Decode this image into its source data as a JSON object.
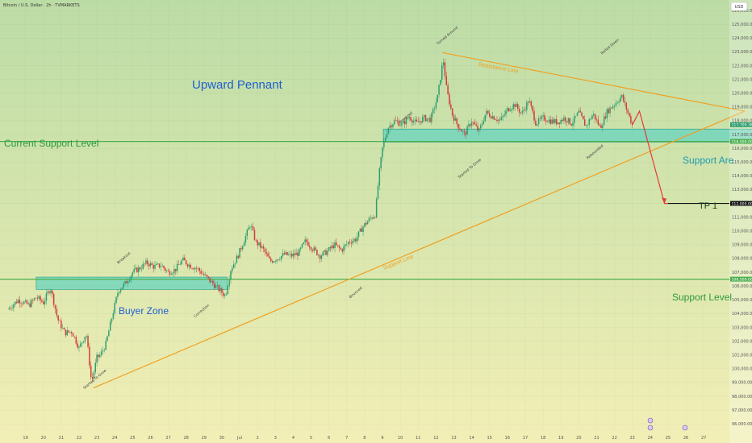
{
  "header": {
    "symbol_line": "Bitcoin / U.S. Dollar · 2h · TVMARKETS",
    "currency_button": "USD"
  },
  "colors": {
    "bg_top": "#bcdca6",
    "bg_bottom": "#f2efb6",
    "support_line": "#4caf50",
    "pennant_line": "#f0a020",
    "zone_fill": "#5fd3c0",
    "up_candle": "#2e9e6f",
    "down_candle": "#d33b3b",
    "arrow": "#e53935",
    "title_blue": "#1f5fd0",
    "label_green": "#2e9a3e",
    "tp_dark": "#1b3a1b"
  },
  "labels": {
    "title": "Upward Pennant",
    "current_support": "Current Support Level",
    "support_area": "Support Are",
    "support_level": "Support Level",
    "buyer_zone": "Buyer Zone",
    "tp1": "TP 1",
    "resistance_line": "Resistance Line",
    "support_line": "Support Line"
  },
  "annotations": [
    {
      "text": "Started To Grow",
      "t": 22.3,
      "price": 98500
    },
    {
      "text": "Breakout",
      "t": 24.2,
      "price": 107600
    },
    {
      "text": "Correction",
      "t": 28.5,
      "price": 103700
    },
    {
      "text": "Bounced",
      "t": 37.2,
      "price": 105100
    },
    {
      "text": "Breakout",
      "t": 40.0,
      "price": 117800
    },
    {
      "text": "Turned Around",
      "t": 42.1,
      "price": 123500
    },
    {
      "text": "Started To Grow",
      "t": 43.3,
      "price": 113800
    },
    {
      "text": "Rebounded",
      "t": 50.5,
      "price": 115200
    },
    {
      "text": "Rolled Down",
      "t": 51.3,
      "price": 122800
    }
  ],
  "price_tags": [
    {
      "text": "117,709.38",
      "price": 117709,
      "color": "#2e9e6f"
    },
    {
      "text": "116,500.00",
      "price": 116500,
      "color": "#4caf50"
    },
    {
      "text": "112,000.00",
      "price": 112000,
      "color": "#111111"
    },
    {
      "text": "106,500.00",
      "price": 106500,
      "color": "#4caf50"
    }
  ],
  "chart_data": {
    "type": "candlestick",
    "title": "Bitcoin / U.S. Dollar · 2h · TVMARKETS",
    "x_ticks": [
      "19",
      "20",
      "21",
      "22",
      "23",
      "24",
      "25",
      "26",
      "27",
      "28",
      "29",
      "30",
      "Jul",
      "2",
      "3",
      "4",
      "5",
      "6",
      "7",
      "8",
      "9",
      "10",
      "11",
      "12",
      "13",
      "14",
      "15",
      "16",
      "17",
      "18",
      "19",
      "20",
      "21",
      "22",
      "23",
      "24",
      "25",
      "26",
      "27"
    ],
    "y_ticks": [
      96000,
      97000,
      98000,
      99000,
      100000,
      101000,
      102000,
      103000,
      104000,
      105000,
      106000,
      107000,
      108000,
      109000,
      110000,
      111000,
      112000,
      113000,
      114000,
      115000,
      116000,
      117000,
      118000,
      119000,
      120000,
      121000,
      122000,
      123000,
      124000,
      125000,
      126000
    ],
    "ylim": [
      95600,
      126300
    ],
    "grid": true,
    "price_path": [
      [
        18.0,
        104300
      ],
      [
        18.6,
        105000
      ],
      [
        19.2,
        104600
      ],
      [
        19.6,
        105200
      ],
      [
        20.0,
        104800
      ],
      [
        20.4,
        105900
      ],
      [
        20.8,
        103600
      ],
      [
        21.2,
        102600
      ],
      [
        21.6,
        102700
      ],
      [
        22.0,
        101500
      ],
      [
        22.4,
        102600
      ],
      [
        22.7,
        99000
      ],
      [
        23.0,
        100800
      ],
      [
        23.2,
        101000
      ],
      [
        23.5,
        101800
      ],
      [
        23.8,
        103500
      ],
      [
        24.2,
        105700
      ],
      [
        24.6,
        106200
      ],
      [
        25.0,
        107000
      ],
      [
        25.4,
        107300
      ],
      [
        25.8,
        107700
      ],
      [
        26.2,
        107400
      ],
      [
        26.6,
        107500
      ],
      [
        27.0,
        107000
      ],
      [
        27.4,
        107200
      ],
      [
        27.8,
        107900
      ],
      [
        28.2,
        107500
      ],
      [
        28.6,
        107300
      ],
      [
        29.0,
        106800
      ],
      [
        29.4,
        106300
      ],
      [
        29.8,
        105800
      ],
      [
        30.2,
        105300
      ],
      [
        30.5,
        107200
      ],
      [
        30.9,
        108200
      ],
      [
        31.3,
        109500
      ],
      [
        31.6,
        110500
      ],
      [
        31.9,
        109200
      ],
      [
        32.3,
        108700
      ],
      [
        32.7,
        107800
      ],
      [
        33.1,
        108000
      ],
      [
        33.5,
        108300
      ],
      [
        33.9,
        108200
      ],
      [
        34.3,
        108400
      ],
      [
        34.7,
        109300
      ],
      [
        35.1,
        108700
      ],
      [
        35.5,
        108200
      ],
      [
        35.9,
        108500
      ],
      [
        36.3,
        109000
      ],
      [
        36.7,
        108600
      ],
      [
        37.1,
        109200
      ],
      [
        37.5,
        109400
      ],
      [
        37.9,
        110300
      ],
      [
        38.3,
        110900
      ],
      [
        38.6,
        111200
      ],
      [
        38.8,
        114000
      ],
      [
        39.0,
        116000
      ],
      [
        39.3,
        117500
      ],
      [
        39.7,
        118000
      ],
      [
        40.1,
        117700
      ],
      [
        40.5,
        118300
      ],
      [
        40.9,
        117800
      ],
      [
        41.3,
        118200
      ],
      [
        41.7,
        118100
      ],
      [
        42.1,
        119800
      ],
      [
        42.4,
        122500
      ],
      [
        42.6,
        120200
      ],
      [
        42.9,
        118500
      ],
      [
        43.2,
        117700
      ],
      [
        43.6,
        117000
      ],
      [
        44.0,
        118000
      ],
      [
        44.4,
        117200
      ],
      [
        44.8,
        118600
      ],
      [
        45.2,
        118300
      ],
      [
        45.6,
        118000
      ],
      [
        46.0,
        118800
      ],
      [
        46.4,
        119200
      ],
      [
        46.8,
        118500
      ],
      [
        47.2,
        119500
      ],
      [
        47.6,
        117800
      ],
      [
        48.0,
        118200
      ],
      [
        48.4,
        118000
      ],
      [
        48.8,
        117900
      ],
      [
        49.2,
        118200
      ],
      [
        49.6,
        117800
      ],
      [
        50.0,
        118600
      ],
      [
        50.4,
        117600
      ],
      [
        50.8,
        118500
      ],
      [
        51.2,
        117500
      ],
      [
        51.6,
        118700
      ],
      [
        52.0,
        119200
      ],
      [
        52.4,
        119800
      ],
      [
        52.8,
        118400
      ],
      [
        53.0,
        117700
      ]
    ],
    "projection": [
      [
        53.0,
        117700
      ],
      [
        53.4,
        118700
      ],
      [
        54.8,
        112000
      ],
      [
        55.0,
        112000
      ]
    ],
    "levels": [
      {
        "name": "Current Support Level",
        "price": 116500
      },
      {
        "name": "Support Level",
        "price": 106500
      },
      {
        "name": "TP 1",
        "price": 112000
      }
    ],
    "zones": [
      {
        "name": "Support Area",
        "t0": 39.05,
        "t1": 61.2,
        "low": 116450,
        "high": 117400
      },
      {
        "name": "Buyer Zone",
        "t0": 19.6,
        "t1": 30.3,
        "low": 105750,
        "high": 106650
      }
    ],
    "trendlines": [
      {
        "name": "Resistance Line",
        "points": [
          [
            42.35,
            122950
          ],
          [
            59.3,
            118700
          ]
        ]
      },
      {
        "name": "Support Line",
        "points": [
          [
            22.8,
            98600
          ],
          [
            59.3,
            118700
          ]
        ]
      }
    ]
  }
}
